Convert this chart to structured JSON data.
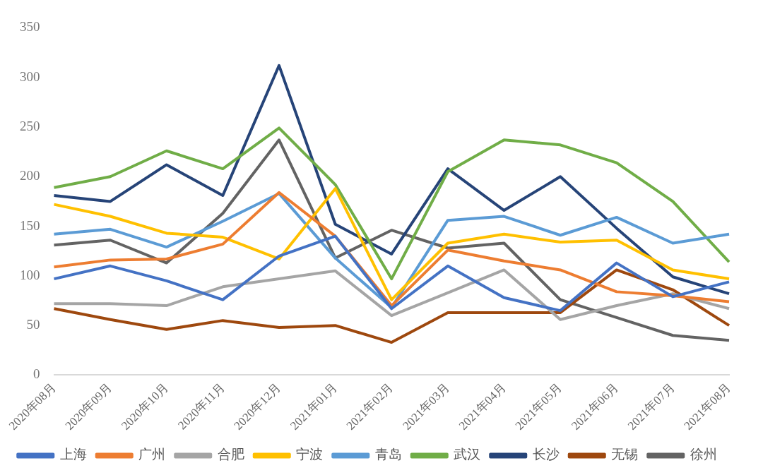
{
  "chart_data": {
    "type": "line",
    "categories": [
      "2020年08月",
      "2020年09月",
      "2020年10月",
      "2020年11月",
      "2020年12月",
      "2021年01月",
      "2021年02月",
      "2021年03月",
      "2021年04月",
      "2021年05月",
      "2021年06月",
      "2021年07月",
      "2021年08月"
    ],
    "series": [
      {
        "name": "上海",
        "color": "#4472c4",
        "values": [
          97,
          110,
          95,
          76,
          120,
          140,
          67,
          110,
          78,
          65,
          113,
          79,
          94
        ]
      },
      {
        "name": "广州",
        "color": "#ed7d31",
        "values": [
          109,
          116,
          117,
          132,
          184,
          140,
          70,
          126,
          115,
          106,
          84,
          80,
          74
        ]
      },
      {
        "name": "合肥",
        "color": "#a5a5a5",
        "values": [
          72,
          72,
          70,
          89,
          97,
          105,
          60,
          83,
          106,
          56,
          70,
          82,
          67
        ]
      },
      {
        "name": "宁波",
        "color": "#ffc000",
        "values": [
          172,
          160,
          143,
          139,
          117,
          188,
          76,
          133,
          142,
          134,
          136,
          106,
          97
        ]
      },
      {
        "name": "青岛",
        "color": "#5b9bd5",
        "values": [
          142,
          147,
          129,
          155,
          183,
          118,
          68,
          156,
          160,
          141,
          159,
          133,
          142
        ]
      },
      {
        "name": "武汉",
        "color": "#70ad47",
        "values": [
          189,
          200,
          226,
          208,
          249,
          192,
          97,
          205,
          237,
          232,
          214,
          175,
          114
        ]
      },
      {
        "name": "长沙",
        "color": "#264478",
        "values": [
          181,
          175,
          212,
          181,
          312,
          152,
          122,
          208,
          166,
          200,
          148,
          99,
          82
        ]
      },
      {
        "name": "无锡",
        "color": "#9e480e",
        "values": [
          67,
          56,
          46,
          55,
          48,
          50,
          33,
          63,
          63,
          63,
          106,
          86,
          50
        ]
      },
      {
        "name": "徐州",
        "color": "#636363",
        "values": [
          131,
          136,
          113,
          163,
          237,
          118,
          146,
          128,
          133,
          76,
          58,
          40,
          35
        ]
      }
    ],
    "ylim": [
      0,
      350
    ],
    "yticks": [
      0,
      50,
      100,
      150,
      200,
      250,
      300,
      350
    ],
    "grid": false,
    "legend": "bottom",
    "marker": "none",
    "line_style": "solid"
  }
}
